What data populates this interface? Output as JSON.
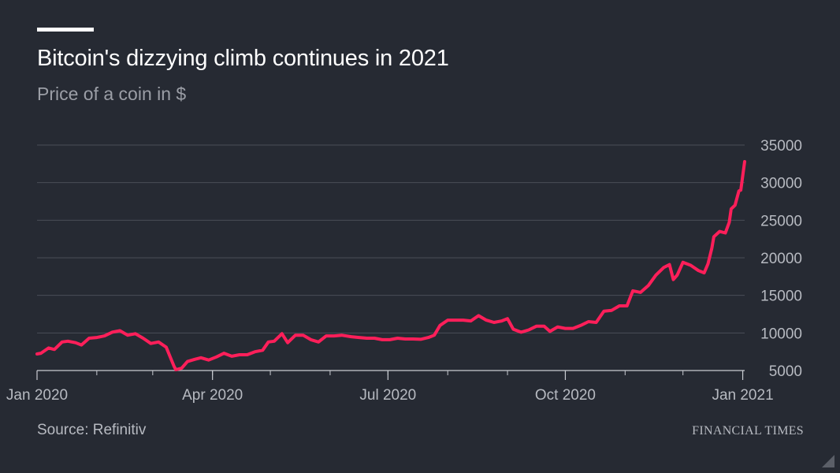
{
  "chart_data": {
    "type": "line",
    "title": "Bitcoin's dizzying climb continues in 2021",
    "subtitle": "Price of a coin in $",
    "xlabel": "",
    "ylabel": "",
    "xticks": [
      "Jan 2020",
      "Apr 2020",
      "Jul 2020",
      "Oct 2020",
      "Jan 2021"
    ],
    "yticks": [
      5000,
      10000,
      15000,
      20000,
      25000,
      30000,
      35000
    ],
    "ylim": [
      5000,
      35000
    ],
    "xlim": [
      "2020-01-01",
      "2021-01-02"
    ],
    "grid": true,
    "colors": {
      "line": "#ff1f5a",
      "background": "#262a33",
      "grid": "#4a4e57",
      "text": "#b7bac1"
    },
    "series": [
      {
        "values": [
          [
            "2020-01-01",
            7200
          ],
          [
            "2020-01-03",
            7300
          ],
          [
            "2020-01-07",
            8000
          ],
          [
            "2020-01-10",
            7800
          ],
          [
            "2020-01-14",
            8800
          ],
          [
            "2020-01-17",
            8900
          ],
          [
            "2020-01-21",
            8700
          ],
          [
            "2020-01-24",
            8400
          ],
          [
            "2020-01-28",
            9300
          ],
          [
            "2020-02-01",
            9400
          ],
          [
            "2020-02-05",
            9600
          ],
          [
            "2020-02-09",
            10100
          ],
          [
            "2020-02-13",
            10300
          ],
          [
            "2020-02-17",
            9700
          ],
          [
            "2020-02-21",
            9900
          ],
          [
            "2020-02-25",
            9300
          ],
          [
            "2020-02-29",
            8600
          ],
          [
            "2020-03-04",
            8800
          ],
          [
            "2020-03-08",
            8100
          ],
          [
            "2020-03-12",
            5600
          ],
          [
            "2020-03-13",
            5100
          ],
          [
            "2020-03-16",
            5300
          ],
          [
            "2020-03-19",
            6200
          ],
          [
            "2020-03-23",
            6500
          ],
          [
            "2020-03-26",
            6700
          ],
          [
            "2020-03-30",
            6400
          ],
          [
            "2020-04-03",
            6800
          ],
          [
            "2020-04-07",
            7300
          ],
          [
            "2020-04-11",
            6900
          ],
          [
            "2020-04-15",
            7100
          ],
          [
            "2020-04-19",
            7100
          ],
          [
            "2020-04-23",
            7500
          ],
          [
            "2020-04-27",
            7700
          ],
          [
            "2020-04-30",
            8800
          ],
          [
            "2020-05-03",
            8900
          ],
          [
            "2020-05-07",
            9900
          ],
          [
            "2020-05-10",
            8700
          ],
          [
            "2020-05-14",
            9700
          ],
          [
            "2020-05-18",
            9700
          ],
          [
            "2020-05-22",
            9100
          ],
          [
            "2020-05-26",
            8800
          ],
          [
            "2020-05-30",
            9600
          ],
          [
            "2020-06-03",
            9600
          ],
          [
            "2020-06-07",
            9700
          ],
          [
            "2020-06-12",
            9500
          ],
          [
            "2020-06-16",
            9400
          ],
          [
            "2020-06-20",
            9300
          ],
          [
            "2020-06-24",
            9300
          ],
          [
            "2020-06-28",
            9100
          ],
          [
            "2020-07-02",
            9100
          ],
          [
            "2020-07-06",
            9300
          ],
          [
            "2020-07-10",
            9200
          ],
          [
            "2020-07-14",
            9200
          ],
          [
            "2020-07-18",
            9150
          ],
          [
            "2020-07-22",
            9400
          ],
          [
            "2020-07-25",
            9700
          ],
          [
            "2020-07-28",
            11000
          ],
          [
            "2020-08-01",
            11700
          ],
          [
            "2020-08-05",
            11700
          ],
          [
            "2020-08-09",
            11700
          ],
          [
            "2020-08-13",
            11600
          ],
          [
            "2020-08-17",
            12300
          ],
          [
            "2020-08-21",
            11700
          ],
          [
            "2020-08-25",
            11400
          ],
          [
            "2020-08-29",
            11600
          ],
          [
            "2020-09-01",
            11900
          ],
          [
            "2020-09-04",
            10500
          ],
          [
            "2020-09-08",
            10100
          ],
          [
            "2020-09-12",
            10400
          ],
          [
            "2020-09-16",
            10900
          ],
          [
            "2020-09-20",
            10900
          ],
          [
            "2020-09-23",
            10200
          ],
          [
            "2020-09-27",
            10800
          ],
          [
            "2020-10-01",
            10600
          ],
          [
            "2020-10-05",
            10600
          ],
          [
            "2020-10-09",
            11000
          ],
          [
            "2020-10-13",
            11500
          ],
          [
            "2020-10-17",
            11400
          ],
          [
            "2020-10-21",
            12900
          ],
          [
            "2020-10-25",
            13000
          ],
          [
            "2020-10-29",
            13600
          ],
          [
            "2020-11-02",
            13600
          ],
          [
            "2020-11-05",
            15600
          ],
          [
            "2020-11-09",
            15400
          ],
          [
            "2020-11-13",
            16300
          ],
          [
            "2020-11-17",
            17700
          ],
          [
            "2020-11-21",
            18700
          ],
          [
            "2020-11-24",
            19100
          ],
          [
            "2020-11-26",
            17100
          ],
          [
            "2020-11-28",
            17700
          ],
          [
            "2020-12-01",
            19400
          ],
          [
            "2020-12-05",
            19000
          ],
          [
            "2020-12-09",
            18300
          ],
          [
            "2020-12-12",
            18000
          ],
          [
            "2020-12-14",
            19200
          ],
          [
            "2020-12-16",
            21300
          ],
          [
            "2020-12-17",
            22800
          ],
          [
            "2020-12-20",
            23500
          ],
          [
            "2020-12-23",
            23300
          ],
          [
            "2020-12-25",
            24700
          ],
          [
            "2020-12-26",
            26500
          ],
          [
            "2020-12-28",
            27000
          ],
          [
            "2020-12-30",
            28900
          ],
          [
            "2020-12-31",
            29000
          ],
          [
            "2021-01-02",
            32800
          ]
        ]
      }
    ],
    "source": "Source: Refinitiv",
    "brand": "FINANCIAL TIMES"
  }
}
